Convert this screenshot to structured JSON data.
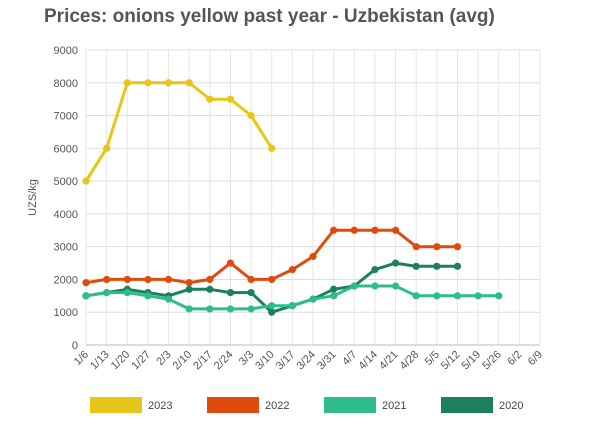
{
  "chart_data": {
    "type": "line",
    "title": "Prices: onions yellow past year - Uzbekistan (avg)",
    "xlabel": "",
    "ylabel": "UZS/kg",
    "ylim": [
      0,
      9000
    ],
    "yticks": [
      0,
      1000,
      2000,
      3000,
      4000,
      5000,
      6000,
      7000,
      8000,
      9000
    ],
    "grid": true,
    "legend_position": "bottom",
    "categories": [
      "1/6",
      "1/13",
      "1/20",
      "1/27",
      "2/3",
      "2/10",
      "2/17",
      "2/24",
      "3/3",
      "3/10",
      "3/17",
      "3/24",
      "3/31",
      "4/7",
      "4/14",
      "4/21",
      "4/28",
      "5/5",
      "5/12",
      "5/19",
      "5/26",
      "6/2",
      "6/9"
    ],
    "series": [
      {
        "name": "2023",
        "color": "#e6c619",
        "values": [
          5000,
          6000,
          8000,
          8000,
          8000,
          8000,
          7500,
          7500,
          7000,
          6000,
          null,
          null,
          null,
          null,
          null,
          null,
          null,
          null,
          null,
          null,
          null,
          null,
          null
        ]
      },
      {
        "name": "2022",
        "color": "#e04a0b",
        "values": [
          1900,
          2000,
          2000,
          2000,
          2000,
          1900,
          2000,
          2500,
          2000,
          2000,
          2300,
          2700,
          3500,
          3500,
          3500,
          3500,
          3000,
          3000,
          3000,
          null,
          null,
          null,
          null
        ]
      },
      {
        "name": "2021",
        "color": "#2ebd8a",
        "values": [
          1500,
          1600,
          1600,
          1500,
          1400,
          1100,
          1100,
          1100,
          1100,
          1200,
          1200,
          1400,
          1500,
          1800,
          1800,
          1800,
          1500,
          1500,
          1500,
          1500,
          1500,
          null,
          null
        ]
      },
      {
        "name": "2020",
        "color": "#1e7f5c",
        "values": [
          1500,
          1600,
          1700,
          1600,
          1500,
          1700,
          1700,
          1600,
          1600,
          1000,
          1200,
          1400,
          1700,
          1800,
          2300,
          2500,
          2400,
          2400,
          2400,
          null,
          null,
          null,
          null
        ]
      }
    ]
  }
}
